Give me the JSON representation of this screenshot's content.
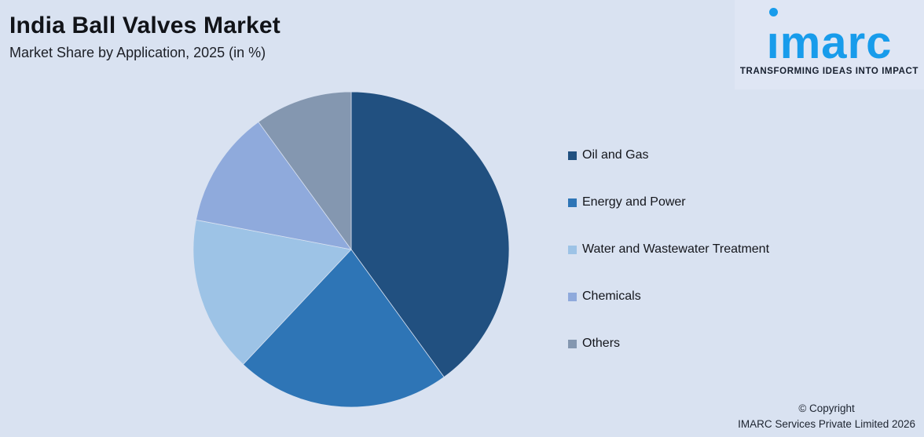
{
  "header": {
    "title": "India Ball Valves Market",
    "subtitle": "Market Share by Application, 2025 (in %)"
  },
  "logo": {
    "brand": "imarc",
    "brand_i": "ı",
    "brand_rest": "marc",
    "tagline": "TRANSFORMING IDEAS INTO IMPACT",
    "brand_color": "#189ceb"
  },
  "footer": {
    "copyright_line1": "© Copyright",
    "copyright_line2": "IMARC Services Private Limited 2026"
  },
  "colors": {
    "background": "#d9e2f1",
    "slice_border": "#d9e2f1"
  },
  "chart_data": {
    "type": "pie",
    "title": "India Ball Valves Market",
    "subtitle": "Market Share by Application, 2025 (in %)",
    "unit": "%",
    "start_angle_deg": 0,
    "direction": "clockwise",
    "legend_position": "right",
    "series": [
      {
        "label": "Oil and Gas",
        "value": 40,
        "color": "#215080"
      },
      {
        "label": "Energy and Power",
        "value": 22,
        "color": "#2e75b6"
      },
      {
        "label": "Water and Wastewater Treatment",
        "value": 16,
        "color": "#9dc3e6"
      },
      {
        "label": "Chemicals",
        "value": 12,
        "color": "#8faadc"
      },
      {
        "label": "Others",
        "value": 10,
        "color": "#8497b0"
      }
    ]
  }
}
